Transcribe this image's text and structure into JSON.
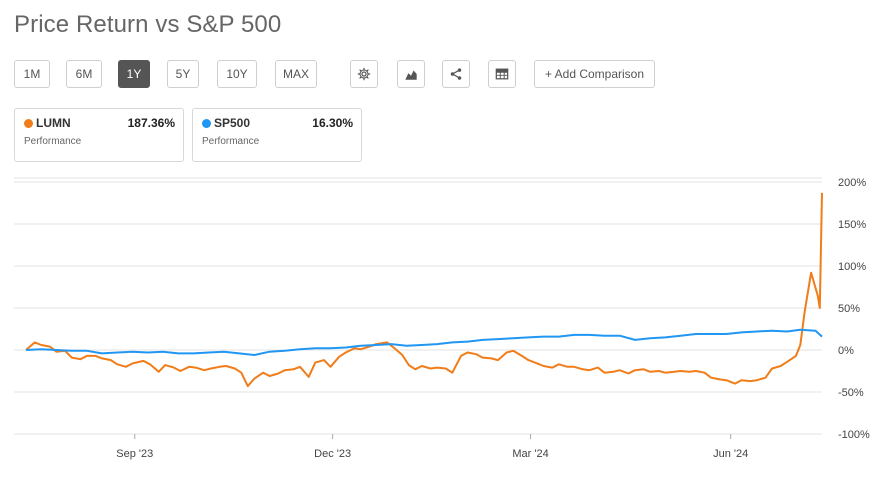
{
  "title": "Price Return vs S&P 500",
  "toolbar": {
    "ranges": [
      "1M",
      "6M",
      "1Y",
      "5Y",
      "10Y",
      "MAX"
    ],
    "active_range": "1Y",
    "icons": [
      "gear-icon",
      "area-chart-icon",
      "share-icon",
      "table-icon"
    ],
    "add_comparison": "+ Add Comparison"
  },
  "cards": [
    {
      "symbol": "LUMN",
      "value": "187.36%",
      "label": "Performance",
      "color": "#f07d1a"
    },
    {
      "symbol": "SP500",
      "value": "16.30%",
      "label": "Performance",
      "color": "#2196f3"
    }
  ],
  "chart_data": {
    "type": "line",
    "title": "",
    "xlabel": "",
    "ylabel": "",
    "y_ticks": [
      "200%",
      "150%",
      "100%",
      "50%",
      "0%",
      "-50%",
      "-100%"
    ],
    "ylim": [
      -100,
      200
    ],
    "x_ticks": [
      {
        "label": "Sep '23",
        "date": "2023-09-01"
      },
      {
        "label": "Dec '23",
        "date": "2023-12-01"
      },
      {
        "label": "Mar '24",
        "date": "2024-03-01"
      },
      {
        "label": "Jun '24",
        "date": "2024-06-01"
      }
    ],
    "grid": true,
    "series": [
      {
        "name": "LUMN",
        "color": "#f07d1a",
        "points": [
          [
            "2023-07-13",
            0
          ],
          [
            "2023-07-17",
            9
          ],
          [
            "2023-07-20",
            6
          ],
          [
            "2023-07-24",
            4
          ],
          [
            "2023-07-27",
            -2
          ],
          [
            "2023-07-31",
            -1
          ],
          [
            "2023-08-03",
            -9
          ],
          [
            "2023-08-07",
            -11
          ],
          [
            "2023-08-10",
            -7
          ],
          [
            "2023-08-14",
            -7
          ],
          [
            "2023-08-17",
            -10
          ],
          [
            "2023-08-21",
            -12
          ],
          [
            "2023-08-24",
            -17
          ],
          [
            "2023-08-28",
            -20
          ],
          [
            "2023-08-31",
            -16
          ],
          [
            "2023-09-05",
            -13
          ],
          [
            "2023-09-08",
            -17
          ],
          [
            "2023-09-12",
            -26
          ],
          [
            "2023-09-15",
            -18
          ],
          [
            "2023-09-19",
            -21
          ],
          [
            "2023-09-22",
            -25
          ],
          [
            "2023-09-26",
            -20
          ],
          [
            "2023-09-29",
            -21
          ],
          [
            "2023-10-03",
            -24
          ],
          [
            "2023-10-06",
            -22
          ],
          [
            "2023-10-10",
            -20
          ],
          [
            "2023-10-13",
            -19
          ],
          [
            "2023-10-17",
            -22
          ],
          [
            "2023-10-20",
            -27
          ],
          [
            "2023-10-23",
            -43
          ],
          [
            "2023-10-26",
            -34
          ],
          [
            "2023-10-30",
            -27
          ],
          [
            "2023-11-02",
            -31
          ],
          [
            "2023-11-06",
            -28
          ],
          [
            "2023-11-09",
            -24
          ],
          [
            "2023-11-13",
            -23
          ],
          [
            "2023-11-16",
            -20
          ],
          [
            "2023-11-20",
            -32
          ],
          [
            "2023-11-23",
            -15
          ],
          [
            "2023-11-27",
            -12
          ],
          [
            "2023-11-30",
            -20
          ],
          [
            "2023-12-04",
            -8
          ],
          [
            "2023-12-07",
            -3
          ],
          [
            "2023-12-11",
            2
          ],
          [
            "2023-12-14",
            1
          ],
          [
            "2023-12-18",
            4
          ],
          [
            "2023-12-21",
            7
          ],
          [
            "2023-12-26",
            9
          ],
          [
            "2023-12-29",
            3
          ],
          [
            "2024-01-02",
            -6
          ],
          [
            "2024-01-05",
            -18
          ],
          [
            "2024-01-08",
            -23
          ],
          [
            "2024-01-11",
            -19
          ],
          [
            "2024-01-15",
            -22
          ],
          [
            "2024-01-18",
            -21
          ],
          [
            "2024-01-22",
            -22
          ],
          [
            "2024-01-25",
            -27
          ],
          [
            "2024-01-29",
            -7
          ],
          [
            "2024-02-01",
            -3
          ],
          [
            "2024-02-05",
            -5
          ],
          [
            "2024-02-08",
            -9
          ],
          [
            "2024-02-12",
            -10
          ],
          [
            "2024-02-15",
            -12
          ],
          [
            "2024-02-19",
            -3
          ],
          [
            "2024-02-22",
            -1
          ],
          [
            "2024-02-26",
            -7
          ],
          [
            "2024-02-29",
            -12
          ],
          [
            "2024-03-04",
            -16
          ],
          [
            "2024-03-07",
            -19
          ],
          [
            "2024-03-11",
            -21
          ],
          [
            "2024-03-14",
            -17
          ],
          [
            "2024-03-18",
            -20
          ],
          [
            "2024-03-21",
            -20
          ],
          [
            "2024-03-25",
            -23
          ],
          [
            "2024-03-28",
            -24
          ],
          [
            "2024-04-01",
            -21
          ],
          [
            "2024-04-04",
            -27
          ],
          [
            "2024-04-08",
            -26
          ],
          [
            "2024-04-11",
            -24
          ],
          [
            "2024-04-15",
            -28
          ],
          [
            "2024-04-18",
            -24
          ],
          [
            "2024-04-22",
            -23
          ],
          [
            "2024-04-25",
            -26
          ],
          [
            "2024-04-29",
            -25
          ],
          [
            "2024-05-02",
            -27
          ],
          [
            "2024-05-06",
            -26
          ],
          [
            "2024-05-09",
            -25
          ],
          [
            "2024-05-13",
            -26
          ],
          [
            "2024-05-16",
            -25
          ],
          [
            "2024-05-20",
            -27
          ],
          [
            "2024-05-23",
            -33
          ],
          [
            "2024-05-27",
            -35
          ],
          [
            "2024-05-30",
            -36
          ],
          [
            "2024-06-03",
            -40
          ],
          [
            "2024-06-06",
            -36
          ],
          [
            "2024-06-10",
            -37
          ],
          [
            "2024-06-13",
            -36
          ],
          [
            "2024-06-17",
            -33
          ],
          [
            "2024-06-20",
            -22
          ],
          [
            "2024-06-24",
            -19
          ],
          [
            "2024-06-27",
            -14
          ],
          [
            "2024-07-01",
            -7
          ],
          [
            "2024-07-03",
            6
          ],
          [
            "2024-07-05",
            45
          ],
          [
            "2024-07-08",
            92
          ],
          [
            "2024-07-11",
            65
          ],
          [
            "2024-07-12",
            50
          ],
          [
            "2024-07-13",
            187
          ]
        ]
      },
      {
        "name": "SP500",
        "color": "#2196f3",
        "points": [
          [
            "2023-07-13",
            0
          ],
          [
            "2023-07-20",
            1
          ],
          [
            "2023-07-27",
            0
          ],
          [
            "2023-08-03",
            -1
          ],
          [
            "2023-08-10",
            -1
          ],
          [
            "2023-08-17",
            -4
          ],
          [
            "2023-08-24",
            -3
          ],
          [
            "2023-08-31",
            -2
          ],
          [
            "2023-09-07",
            -3
          ],
          [
            "2023-09-14",
            -2
          ],
          [
            "2023-09-21",
            -4
          ],
          [
            "2023-09-28",
            -4
          ],
          [
            "2023-10-05",
            -3
          ],
          [
            "2023-10-12",
            -2
          ],
          [
            "2023-10-19",
            -4
          ],
          [
            "2023-10-26",
            -6
          ],
          [
            "2023-11-02",
            -2
          ],
          [
            "2023-11-09",
            -1
          ],
          [
            "2023-11-16",
            1
          ],
          [
            "2023-11-23",
            2
          ],
          [
            "2023-11-30",
            2
          ],
          [
            "2023-12-07",
            3
          ],
          [
            "2023-12-14",
            5
          ],
          [
            "2023-12-21",
            6
          ],
          [
            "2023-12-28",
            7
          ],
          [
            "2024-01-04",
            5
          ],
          [
            "2024-01-11",
            6
          ],
          [
            "2024-01-18",
            7
          ],
          [
            "2024-01-25",
            9
          ],
          [
            "2024-02-01",
            10
          ],
          [
            "2024-02-08",
            12
          ],
          [
            "2024-02-15",
            13
          ],
          [
            "2024-02-22",
            14
          ],
          [
            "2024-02-29",
            15
          ],
          [
            "2024-03-07",
            16
          ],
          [
            "2024-03-14",
            16
          ],
          [
            "2024-03-21",
            18
          ],
          [
            "2024-03-28",
            18
          ],
          [
            "2024-04-04",
            17
          ],
          [
            "2024-04-11",
            17
          ],
          [
            "2024-04-18",
            12
          ],
          [
            "2024-04-25",
            14
          ],
          [
            "2024-05-02",
            15
          ],
          [
            "2024-05-09",
            17
          ],
          [
            "2024-05-16",
            19
          ],
          [
            "2024-05-23",
            19
          ],
          [
            "2024-05-30",
            19
          ],
          [
            "2024-06-06",
            21
          ],
          [
            "2024-06-13",
            22
          ],
          [
            "2024-06-20",
            23
          ],
          [
            "2024-06-27",
            22
          ],
          [
            "2024-07-03",
            24
          ],
          [
            "2024-07-10",
            23
          ],
          [
            "2024-07-13",
            16
          ]
        ]
      }
    ]
  }
}
